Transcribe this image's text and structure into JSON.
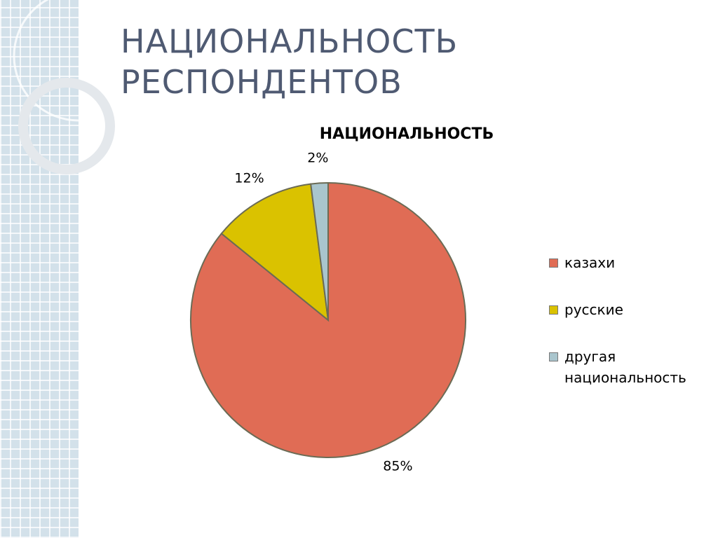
{
  "slide": {
    "title": "НАЦИОНАЛЬНОСТЬ РЕСПОНДЕНТОВ"
  },
  "chart_data": {
    "type": "pie",
    "title": "НАЦИОНАЛЬНОСТЬ",
    "categories": [
      "казахи",
      "русские",
      "другая национальность"
    ],
    "values": [
      85,
      12,
      2
    ],
    "value_labels": [
      "85%",
      "12%",
      "2%"
    ],
    "colors": [
      "#e06c55",
      "#dac200",
      "#a9c5cd"
    ],
    "legend": "right"
  }
}
